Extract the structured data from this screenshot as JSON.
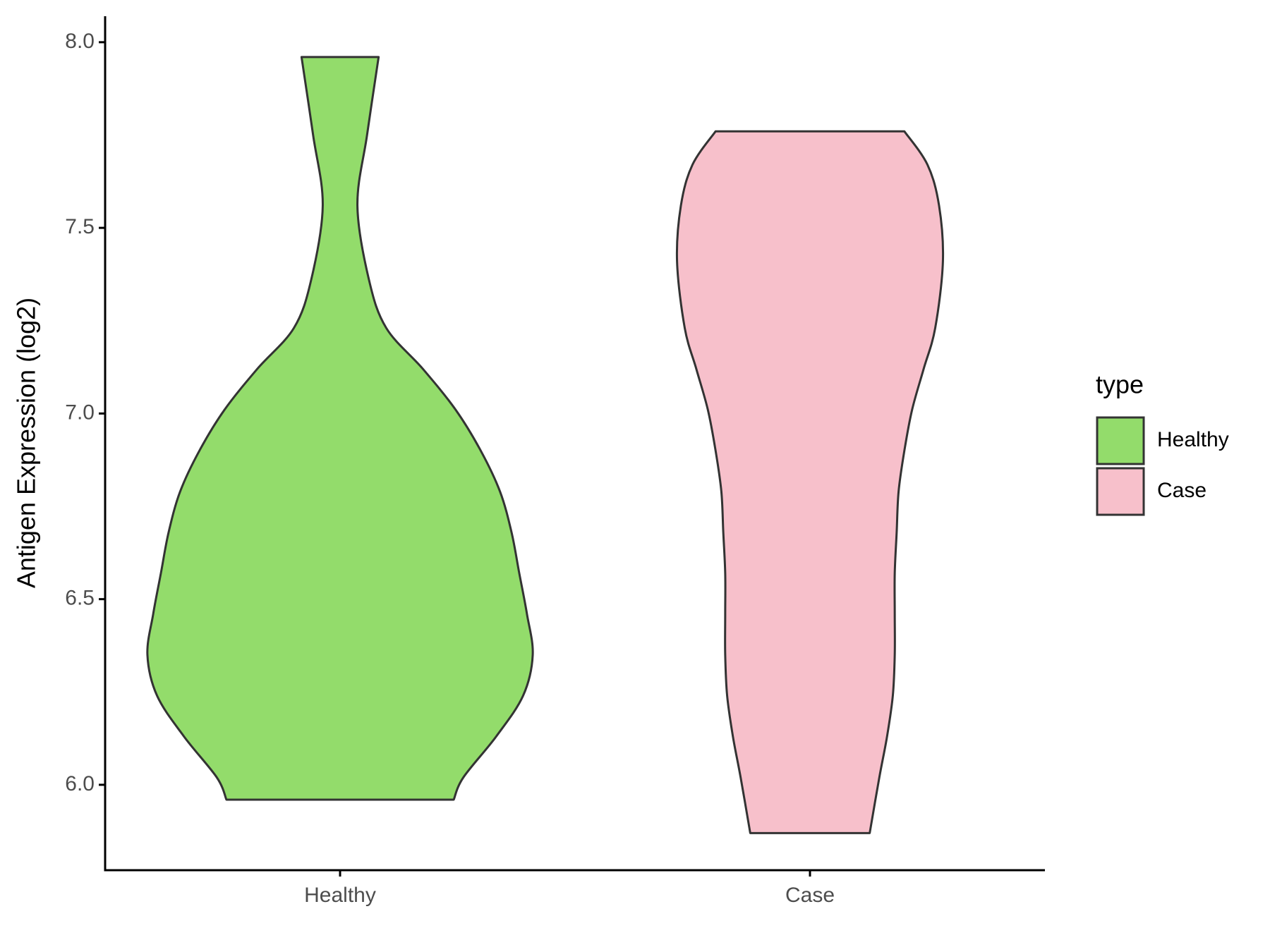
{
  "chart_data": {
    "type": "violin",
    "y_label": "Antigen Expression (log2)",
    "categories": [
      "Healthy",
      "Case"
    ],
    "legend_title": "type",
    "series": [
      {
        "name": "Healthy",
        "color": "#93dc6b",
        "y": [
          7.96,
          7.75,
          7.56,
          7.36,
          7.23,
          7.12,
          7.01,
          6.9,
          6.79,
          6.68,
          6.57,
          6.46,
          6.35,
          6.24,
          6.13,
          6.02,
          5.96
        ],
        "density": [
          0.2,
          0.14,
          0.09,
          0.15,
          0.24,
          0.43,
          0.6,
          0.73,
          0.83,
          0.89,
          0.93,
          0.97,
          1.0,
          0.95,
          0.81,
          0.64,
          0.59
        ]
      },
      {
        "name": "Case",
        "color": "#f7c0cb",
        "y": [
          7.76,
          7.67,
          7.56,
          7.41,
          7.23,
          7.12,
          7.01,
          6.9,
          6.79,
          6.68,
          6.57,
          6.46,
          6.35,
          6.24,
          6.13,
          6.02,
          5.87
        ],
        "density": [
          0.49,
          0.61,
          0.67,
          0.69,
          0.65,
          0.59,
          0.53,
          0.49,
          0.46,
          0.45,
          0.44,
          0.44,
          0.44,
          0.43,
          0.4,
          0.36,
          0.31
        ]
      }
    ],
    "ylim": [
      5.77,
      8.07
    ],
    "yticks": [
      {
        "value": 6,
        "label": "6.0"
      },
      {
        "value": 6.5,
        "label": "6.5"
      },
      {
        "value": 7,
        "label": "7.0"
      },
      {
        "value": 7.5,
        "label": "7.5"
      },
      {
        "value": 8,
        "label": "8.0"
      }
    ]
  }
}
